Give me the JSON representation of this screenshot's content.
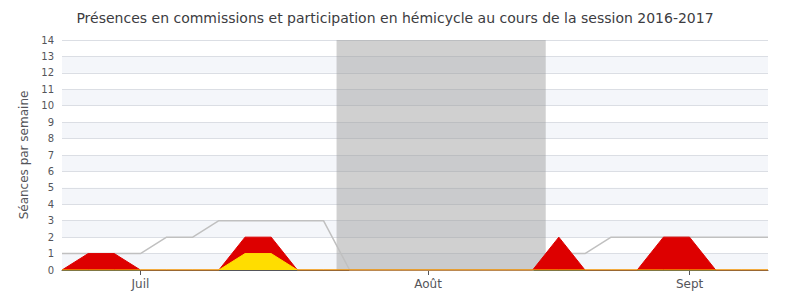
{
  "chart_data": {
    "type": "area",
    "title": "Présences en commissions et participation en hémicycle au cours de la session 2016-2017",
    "ylabel": "Séances par semaine",
    "x": [
      0,
      1,
      2,
      3,
      4,
      5,
      6,
      7,
      8,
      9,
      10,
      11,
      12,
      13,
      14,
      15,
      16,
      17,
      18,
      19,
      20,
      21,
      22,
      23,
      24,
      25,
      26,
      27
    ],
    "series": [
      {
        "type": "line",
        "color": "#c0c0c0",
        "values": [
          1,
          1,
          1,
          1,
          2,
          2,
          3,
          3,
          3,
          3,
          3,
          0,
          0,
          0,
          0,
          0,
          0,
          0,
          0,
          1,
          1,
          2,
          2,
          2,
          2,
          2,
          2,
          2
        ]
      },
      {
        "type": "area",
        "color": "#dd0000",
        "values": [
          0,
          1,
          1,
          0,
          0,
          0,
          0,
          2,
          2,
          0,
          0,
          0,
          0,
          0,
          0,
          0,
          0,
          0,
          0,
          2,
          0,
          0,
          0,
          2,
          2,
          0,
          0,
          0
        ]
      },
      {
        "type": "area",
        "color": "#ffdd00",
        "values": [
          0,
          0,
          0,
          0,
          0,
          0,
          0,
          1,
          1,
          0,
          0,
          0,
          0,
          0,
          0,
          0,
          0,
          0,
          0,
          0,
          0,
          0,
          0,
          0,
          0,
          0,
          0,
          0
        ]
      }
    ],
    "xlim": [
      0,
      27
    ],
    "xticks": [
      {
        "value": 3,
        "label": "Juil"
      },
      {
        "value": 14,
        "label": "Août"
      },
      {
        "value": 24,
        "label": "Sept"
      }
    ],
    "ylim": [
      0,
      14
    ],
    "yticks": [
      0,
      1,
      2,
      3,
      4,
      5,
      6,
      7,
      8,
      9,
      10,
      11,
      12,
      13,
      14
    ],
    "grid": true,
    "recess": [
      10.5,
      18.5
    ]
  }
}
